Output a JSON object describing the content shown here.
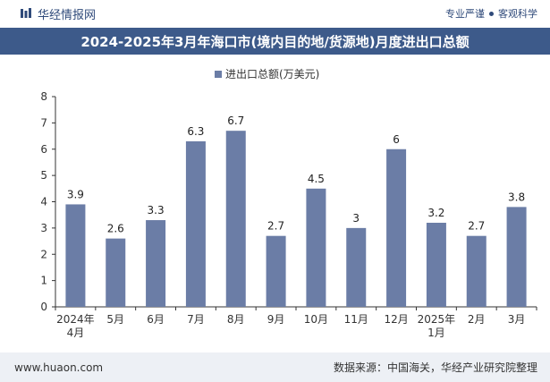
{
  "header": {
    "brand_name": "华经情报网",
    "tagline_left": "专业严谨",
    "tagline_right": "客观科学"
  },
  "title": "2024-2025年3月年海口市(境内目的地/货源地)月度进出口总额",
  "footer": {
    "website": "www.huaon.com",
    "source": "数据来源：中国海关，华经产业研究院整理"
  },
  "colors": {
    "bar": "#6b7da6",
    "title_bg": "#3d5a8a",
    "footer_bg": "#edf0f5"
  },
  "chart_data": {
    "type": "bar",
    "legend": "进出口总额(万美元)",
    "legend_position": "top-center",
    "categories": [
      "2024年4月",
      "5月",
      "6月",
      "7月",
      "8月",
      "9月",
      "10月",
      "11月",
      "12月",
      "2025年1月",
      "2月",
      "3月"
    ],
    "values": [
      3.9,
      2.6,
      3.3,
      6.3,
      6.7,
      2.7,
      4.5,
      3,
      6,
      3.2,
      2.7,
      3.8
    ],
    "ylim": [
      0,
      8
    ],
    "yticks": [
      0,
      1,
      2,
      3,
      4,
      5,
      6,
      7,
      8
    ],
    "grid": false
  }
}
